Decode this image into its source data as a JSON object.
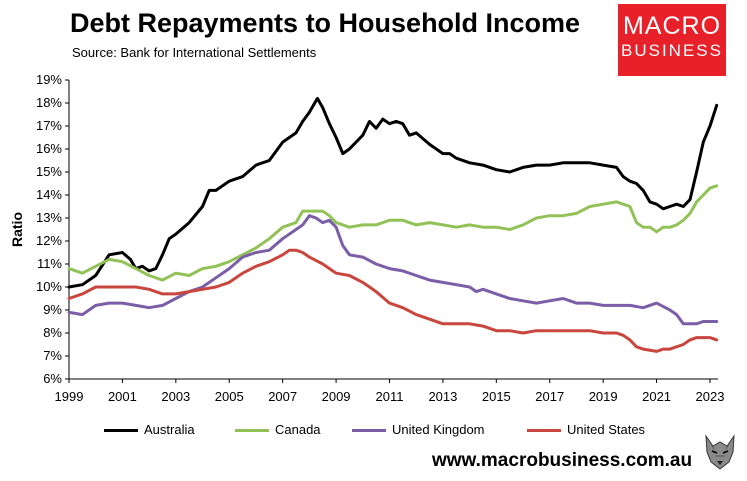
{
  "header": {
    "title": "Debt Repayments to Household Income",
    "subtitle": "Source: Bank for International Settlements"
  },
  "logo": {
    "line1": "MACRO",
    "line2": "BUSINESS"
  },
  "footer": {
    "website": "www.macrobusiness.com.au"
  },
  "chart_data": {
    "type": "line",
    "title": "Debt Repayments to Household Income",
    "xlabel": "",
    "ylabel": "Ratio",
    "xlim": [
      1999,
      2023.3
    ],
    "ylim": [
      6,
      19
    ],
    "x_ticks": [
      1999,
      2001,
      2003,
      2005,
      2007,
      2009,
      2011,
      2013,
      2015,
      2017,
      2019,
      2021,
      2023
    ],
    "y_ticks": [
      6,
      7,
      8,
      9,
      10,
      11,
      12,
      13,
      14,
      15,
      16,
      17,
      18,
      19
    ],
    "y_tick_labels": [
      "6%",
      "7%",
      "8%",
      "9%",
      "10%",
      "11%",
      "12%",
      "13%",
      "14%",
      "15%",
      "16%",
      "17%",
      "18%",
      "19%"
    ],
    "grid": false,
    "legend_position": "bottom",
    "series": [
      {
        "name": "Australia",
        "color": "#000000",
        "points": [
          [
            1999,
            10.0
          ],
          [
            1999.5,
            10.1
          ],
          [
            2000,
            10.5
          ],
          [
            2000.5,
            11.4
          ],
          [
            2001,
            11.5
          ],
          [
            2001.3,
            11.2
          ],
          [
            2001.5,
            10.8
          ],
          [
            2001.75,
            10.9
          ],
          [
            2002,
            10.7
          ],
          [
            2002.25,
            10.8
          ],
          [
            2002.5,
            11.4
          ],
          [
            2002.75,
            12.1
          ],
          [
            2003,
            12.3
          ],
          [
            2003.5,
            12.8
          ],
          [
            2004,
            13.5
          ],
          [
            2004.25,
            14.2
          ],
          [
            2004.5,
            14.2
          ],
          [
            2005,
            14.6
          ],
          [
            2005.5,
            14.8
          ],
          [
            2006,
            15.3
          ],
          [
            2006.5,
            15.5
          ],
          [
            2007,
            16.3
          ],
          [
            2007.5,
            16.7
          ],
          [
            2007.75,
            17.2
          ],
          [
            2008,
            17.6
          ],
          [
            2008.3,
            18.2
          ],
          [
            2008.5,
            17.8
          ],
          [
            2008.75,
            17.1
          ],
          [
            2009,
            16.5
          ],
          [
            2009.25,
            15.8
          ],
          [
            2009.5,
            16.0
          ],
          [
            2010,
            16.6
          ],
          [
            2010.25,
            17.2
          ],
          [
            2010.5,
            16.9
          ],
          [
            2010.75,
            17.3
          ],
          [
            2011,
            17.1
          ],
          [
            2011.25,
            17.2
          ],
          [
            2011.5,
            17.1
          ],
          [
            2011.75,
            16.6
          ],
          [
            2012,
            16.7
          ],
          [
            2012.5,
            16.2
          ],
          [
            2013,
            15.8
          ],
          [
            2013.25,
            15.8
          ],
          [
            2013.5,
            15.6
          ],
          [
            2014,
            15.4
          ],
          [
            2014.5,
            15.3
          ],
          [
            2015,
            15.1
          ],
          [
            2015.5,
            15.0
          ],
          [
            2016,
            15.2
          ],
          [
            2016.5,
            15.3
          ],
          [
            2017,
            15.3
          ],
          [
            2017.5,
            15.4
          ],
          [
            2018,
            15.4
          ],
          [
            2018.5,
            15.4
          ],
          [
            2019,
            15.3
          ],
          [
            2019.5,
            15.2
          ],
          [
            2019.75,
            14.8
          ],
          [
            2020,
            14.6
          ],
          [
            2020.25,
            14.5
          ],
          [
            2020.5,
            14.2
          ],
          [
            2020.75,
            13.7
          ],
          [
            2021,
            13.6
          ],
          [
            2021.25,
            13.4
          ],
          [
            2021.5,
            13.5
          ],
          [
            2021.75,
            13.6
          ],
          [
            2022,
            13.5
          ],
          [
            2022.25,
            13.8
          ],
          [
            2022.5,
            15.0
          ],
          [
            2022.75,
            16.3
          ],
          [
            2023,
            17.0
          ],
          [
            2023.25,
            17.9
          ]
        ]
      },
      {
        "name": "Canada",
        "color": "#92c257",
        "points": [
          [
            1999,
            10.8
          ],
          [
            1999.5,
            10.6
          ],
          [
            2000,
            10.9
          ],
          [
            2000.5,
            11.2
          ],
          [
            2001,
            11.1
          ],
          [
            2001.5,
            10.8
          ],
          [
            2002,
            10.5
          ],
          [
            2002.5,
            10.3
          ],
          [
            2003,
            10.6
          ],
          [
            2003.5,
            10.5
          ],
          [
            2004,
            10.8
          ],
          [
            2004.5,
            10.9
          ],
          [
            2005,
            11.1
          ],
          [
            2005.5,
            11.4
          ],
          [
            2006,
            11.7
          ],
          [
            2006.5,
            12.1
          ],
          [
            2007,
            12.6
          ],
          [
            2007.5,
            12.8
          ],
          [
            2007.75,
            13.3
          ],
          [
            2008,
            13.3
          ],
          [
            2008.5,
            13.3
          ],
          [
            2008.75,
            13.1
          ],
          [
            2009,
            12.8
          ],
          [
            2009.5,
            12.6
          ],
          [
            2010,
            12.7
          ],
          [
            2010.5,
            12.7
          ],
          [
            2011,
            12.9
          ],
          [
            2011.5,
            12.9
          ],
          [
            2012,
            12.7
          ],
          [
            2012.5,
            12.8
          ],
          [
            2013,
            12.7
          ],
          [
            2013.5,
            12.6
          ],
          [
            2014,
            12.7
          ],
          [
            2014.5,
            12.6
          ],
          [
            2015,
            12.6
          ],
          [
            2015.5,
            12.5
          ],
          [
            2016,
            12.7
          ],
          [
            2016.5,
            13.0
          ],
          [
            2017,
            13.1
          ],
          [
            2017.5,
            13.1
          ],
          [
            2018,
            13.2
          ],
          [
            2018.5,
            13.5
          ],
          [
            2019,
            13.6
          ],
          [
            2019.5,
            13.7
          ],
          [
            2020,
            13.5
          ],
          [
            2020.25,
            12.8
          ],
          [
            2020.5,
            12.6
          ],
          [
            2020.75,
            12.6
          ],
          [
            2021,
            12.4
          ],
          [
            2021.25,
            12.6
          ],
          [
            2021.5,
            12.6
          ],
          [
            2021.75,
            12.7
          ],
          [
            2022,
            12.9
          ],
          [
            2022.25,
            13.2
          ],
          [
            2022.5,
            13.7
          ],
          [
            2022.75,
            14.0
          ],
          [
            2023,
            14.3
          ],
          [
            2023.25,
            14.4
          ]
        ]
      },
      {
        "name": "United Kingdom",
        "color": "#7b5ea7",
        "points": [
          [
            1999,
            8.9
          ],
          [
            1999.5,
            8.8
          ],
          [
            2000,
            9.2
          ],
          [
            2000.5,
            9.3
          ],
          [
            2001,
            9.3
          ],
          [
            2001.5,
            9.2
          ],
          [
            2002,
            9.1
          ],
          [
            2002.5,
            9.2
          ],
          [
            2003,
            9.5
          ],
          [
            2003.5,
            9.8
          ],
          [
            2004,
            10.0
          ],
          [
            2004.5,
            10.4
          ],
          [
            2005,
            10.8
          ],
          [
            2005.5,
            11.3
          ],
          [
            2006,
            11.5
          ],
          [
            2006.5,
            11.6
          ],
          [
            2007,
            12.1
          ],
          [
            2007.5,
            12.5
          ],
          [
            2007.75,
            12.7
          ],
          [
            2008,
            13.1
          ],
          [
            2008.25,
            13.0
          ],
          [
            2008.5,
            12.8
          ],
          [
            2008.75,
            12.9
          ],
          [
            2009,
            12.6
          ],
          [
            2009.25,
            11.8
          ],
          [
            2009.5,
            11.4
          ],
          [
            2010,
            11.3
          ],
          [
            2010.5,
            11.0
          ],
          [
            2011,
            10.8
          ],
          [
            2011.5,
            10.7
          ],
          [
            2012,
            10.5
          ],
          [
            2012.5,
            10.3
          ],
          [
            2013,
            10.2
          ],
          [
            2013.5,
            10.1
          ],
          [
            2014,
            10.0
          ],
          [
            2014.25,
            9.8
          ],
          [
            2014.5,
            9.9
          ],
          [
            2015,
            9.7
          ],
          [
            2015.5,
            9.5
          ],
          [
            2016,
            9.4
          ],
          [
            2016.5,
            9.3
          ],
          [
            2017,
            9.4
          ],
          [
            2017.5,
            9.5
          ],
          [
            2018,
            9.3
          ],
          [
            2018.5,
            9.3
          ],
          [
            2019,
            9.2
          ],
          [
            2019.5,
            9.2
          ],
          [
            2020,
            9.2
          ],
          [
            2020.5,
            9.1
          ],
          [
            2021,
            9.3
          ],
          [
            2021.5,
            9.0
          ],
          [
            2021.75,
            8.8
          ],
          [
            2022,
            8.4
          ],
          [
            2022.5,
            8.4
          ],
          [
            2022.75,
            8.5
          ],
          [
            2023,
            8.5
          ],
          [
            2023.25,
            8.5
          ]
        ]
      },
      {
        "name": "United States",
        "color": "#c8463d",
        "points": [
          [
            1999,
            9.5
          ],
          [
            1999.5,
            9.7
          ],
          [
            2000,
            10.0
          ],
          [
            2000.5,
            10.0
          ],
          [
            2001,
            10.0
          ],
          [
            2001.5,
            10.0
          ],
          [
            2002,
            9.9
          ],
          [
            2002.5,
            9.7
          ],
          [
            2003,
            9.7
          ],
          [
            2003.5,
            9.8
          ],
          [
            2004,
            9.9
          ],
          [
            2004.5,
            10.0
          ],
          [
            2005,
            10.2
          ],
          [
            2005.5,
            10.6
          ],
          [
            2006,
            10.9
          ],
          [
            2006.5,
            11.1
          ],
          [
            2007,
            11.4
          ],
          [
            2007.25,
            11.6
          ],
          [
            2007.5,
            11.6
          ],
          [
            2007.75,
            11.5
          ],
          [
            2008,
            11.3
          ],
          [
            2008.5,
            11.0
          ],
          [
            2009,
            10.6
          ],
          [
            2009.5,
            10.5
          ],
          [
            2010,
            10.2
          ],
          [
            2010.5,
            9.8
          ],
          [
            2011,
            9.3
          ],
          [
            2011.5,
            9.1
          ],
          [
            2012,
            8.8
          ],
          [
            2012.5,
            8.6
          ],
          [
            2013,
            8.4
          ],
          [
            2013.5,
            8.4
          ],
          [
            2014,
            8.4
          ],
          [
            2014.5,
            8.3
          ],
          [
            2015,
            8.1
          ],
          [
            2015.5,
            8.1
          ],
          [
            2016,
            8.0
          ],
          [
            2016.5,
            8.1
          ],
          [
            2017,
            8.1
          ],
          [
            2017.5,
            8.1
          ],
          [
            2018,
            8.1
          ],
          [
            2018.5,
            8.1
          ],
          [
            2019,
            8.0
          ],
          [
            2019.5,
            8.0
          ],
          [
            2019.75,
            7.9
          ],
          [
            2020,
            7.7
          ],
          [
            2020.25,
            7.4
          ],
          [
            2020.5,
            7.3
          ],
          [
            2021,
            7.2
          ],
          [
            2021.25,
            7.3
          ],
          [
            2021.5,
            7.3
          ],
          [
            2022,
            7.5
          ],
          [
            2022.25,
            7.7
          ],
          [
            2022.5,
            7.8
          ],
          [
            2022.75,
            7.8
          ],
          [
            2023,
            7.8
          ],
          [
            2023.25,
            7.7
          ]
        ]
      }
    ]
  }
}
